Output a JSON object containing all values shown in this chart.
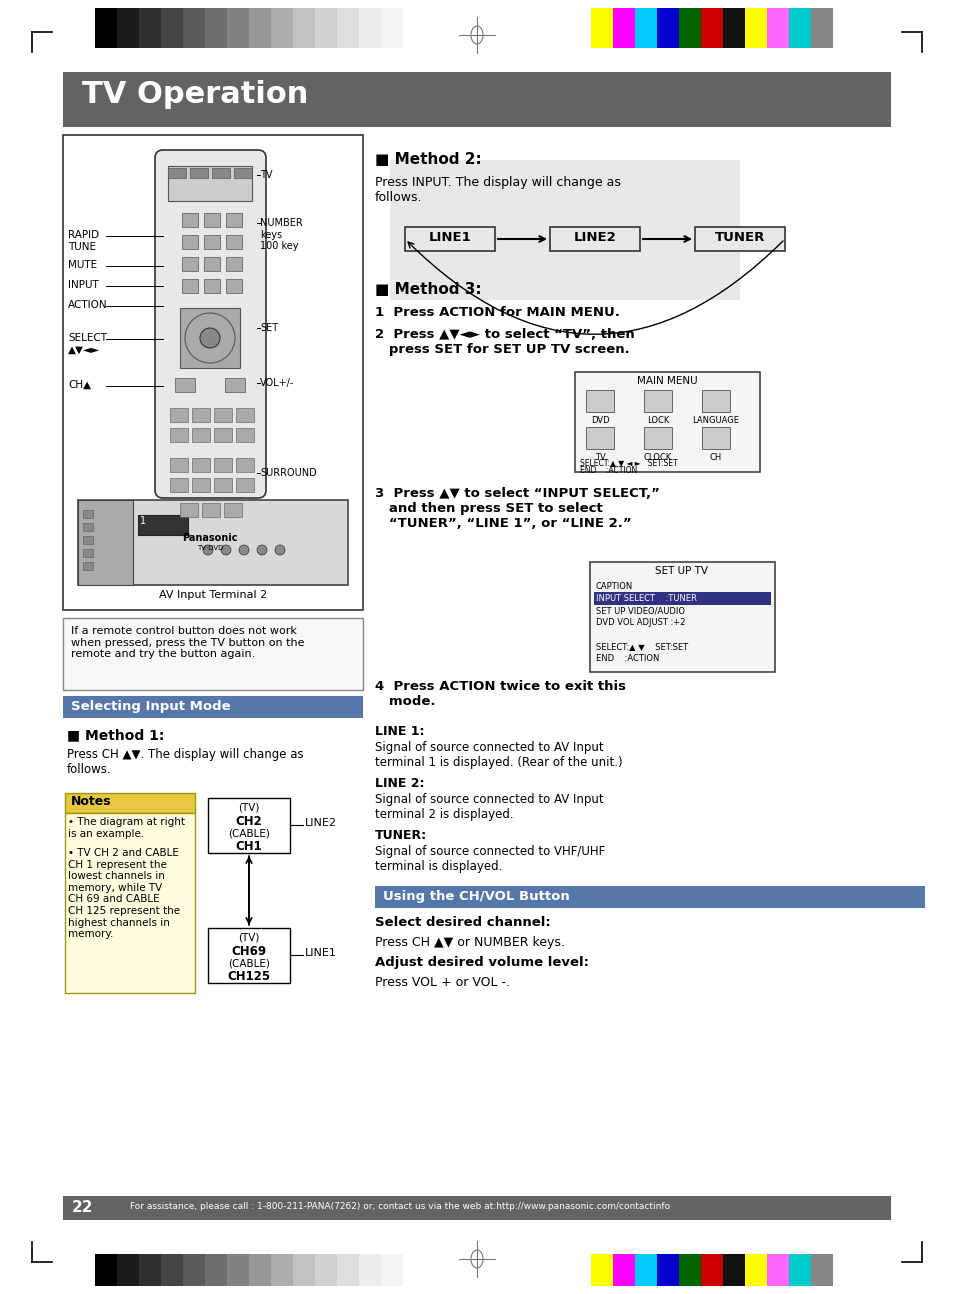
{
  "page_bg": "#ffffff",
  "header_bg": "#636363",
  "header_text": "TV Operation",
  "footer_text": "For assistance, please call : 1-800-211-PANA(7262) or, contact us via the web at:http://www.panasonic.com/contactinfo",
  "footer_page_num": "22",
  "selecting_input_text": "Selecting Input Mode",
  "using_chvol_text": "Using the CH/VOL Button",
  "method1_header": "Method 1:",
  "method1_desc": "Press CH ▲▼. The display will change as\nfollows.",
  "method2_header": "Method 2:",
  "method2_desc": "Press INPUT. The display will change as\nfollows.",
  "method3_header": "Method 3:",
  "method3_step1": "1  Press ACTION for MAIN MENU.",
  "method3_step2": "2  Press ▲▼◄► to select “TV”, then\n   press SET for SET UP TV screen.",
  "method3_step3": "3  Press ▲▼ to select “INPUT SELECT,”\n   and then press SET to select\n   “TUNER”, “LINE 1”, or “LINE 2.”",
  "method3_step4": "4  Press ACTION twice to exit this\n   mode.",
  "line1_label": "LINE 1:",
  "line1_desc": "Signal of source connected to AV Input\nterminal 1 is displayed. (Rear of the unit.)",
  "line2_label": "LINE 2:",
  "line2_desc": "Signal of source connected to AV Input\nterminal 2 is displayed.",
  "tuner_label": "TUNER:",
  "tuner_desc": "Signal of source connected to VHF/UHF\nterminal is displayed.",
  "select_channel_header": "Select desired channel:",
  "select_channel_desc": "Press CH ▲▼ or NUMBER keys.",
  "adjust_vol_header": "Adjust desired volume level:",
  "adjust_vol_desc": "Press VOL + or VOL -.",
  "notes_header": "Notes",
  "notes_bullet1": "The diagram at right\nis an example.",
  "notes_bullet2": "TV CH 2 and CABLE\nCH 1 represent the\nlowest channels in\nmemory, while TV\nCH 69 and CABLE\nCH 125 represent the\nhighest channels in\nmemory.",
  "av_input_label": "AV Input Terminal 2",
  "remote_note": "If a remote control button does not work\nwhen pressed, press the TV button on the\nremote and try the button again.",
  "grays": [
    "#000000",
    "#1a1a1a",
    "#2f2f2f",
    "#444444",
    "#595959",
    "#6e6e6e",
    "#838383",
    "#989898",
    "#adadad",
    "#c2c2c2",
    "#d0d0d0",
    "#dedede",
    "#ececec",
    "#f5f5f5",
    "#ffffff"
  ],
  "brights": [
    "#ffff00",
    "#ff00ff",
    "#00ccff",
    "#0000cc",
    "#006600",
    "#cc0000",
    "#111111",
    "#ffff00",
    "#ff66ff",
    "#00cccc",
    "#888888"
  ]
}
